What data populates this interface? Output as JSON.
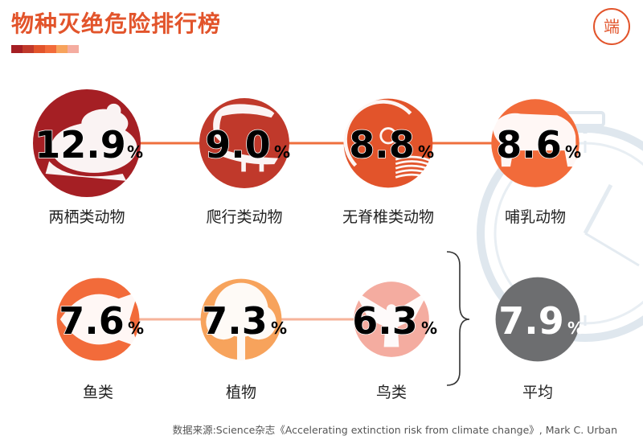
{
  "header": {
    "title": "物种灭绝危险排行榜",
    "swatch_colors": [
      "#a51f24",
      "#c0392b",
      "#e2542b",
      "#f26b3a",
      "#f7a35c",
      "#f4aca0"
    ],
    "logo_text": "端"
  },
  "chart_data": {
    "type": "bubble",
    "unit": "%",
    "categories": [
      "两栖类动物",
      "爬行类动物",
      "无脊椎类动物",
      "哺乳动物",
      "鱼类",
      "植物",
      "鸟类",
      "平均"
    ],
    "values": [
      12.9,
      9.0,
      8.8,
      8.6,
      7.6,
      7.3,
      6.3,
      7.9
    ],
    "value_labels": [
      "12.9",
      "9.0",
      "8.8",
      "8.6",
      "7.6",
      "7.3",
      "6.3",
      "7.9"
    ],
    "icons": [
      "frog-icon",
      "lizard-icon",
      "snail-icon",
      "bear-icon",
      "fish-icon",
      "tree-icon",
      "eagle-icon",
      "none"
    ],
    "colors": [
      "#a51f24",
      "#c0392b",
      "#e2542b",
      "#f26b3a",
      "#f26b3a",
      "#f7a35c",
      "#f4aca0",
      "#6d6e70"
    ]
  },
  "footer": {
    "source": "数据来源:Science杂志《Accelerating extinction risk from climate change》, Mark C. Urban"
  }
}
